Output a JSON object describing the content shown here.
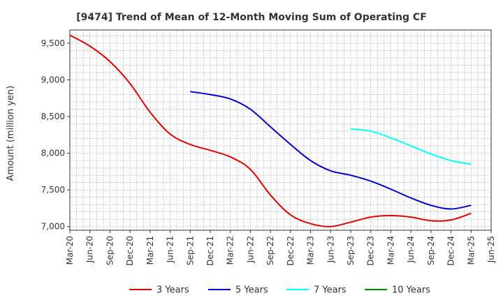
{
  "chart_data": {
    "type": "line",
    "title": "[9474]  Trend of Mean of 12-Month Moving Sum of Operating CF",
    "xlabel": "",
    "ylabel": "Amount (million yen)",
    "ylim": [
      6950,
      9680
    ],
    "yticks": [
      7000,
      7500,
      8000,
      8500,
      9000,
      9500
    ],
    "ytick_labels": [
      "7,000",
      "7,500",
      "8,000",
      "8,500",
      "9,000",
      "9,500"
    ],
    "xtick_labels": [
      "Mar-20",
      "Jun-20",
      "Sep-20",
      "Dec-20",
      "Mar-21",
      "Jun-21",
      "Sep-21",
      "Dec-21",
      "Mar-22",
      "Jun-22",
      "Sep-22",
      "Dec-22",
      "Mar-23",
      "Jun-23",
      "Sep-23",
      "Dec-23",
      "Mar-24",
      "Jun-24",
      "Sep-24",
      "Dec-24",
      "Mar-25",
      "Jun-25"
    ],
    "grid": true,
    "legend_position": "bottom",
    "series": [
      {
        "name": "3 Years",
        "color": "#dd0000",
        "points": [
          [
            0,
            9610
          ],
          [
            1,
            9460
          ],
          [
            2,
            9250
          ],
          [
            3,
            8950
          ],
          [
            4,
            8560
          ],
          [
            5,
            8260
          ],
          [
            6,
            8120
          ],
          [
            7,
            8040
          ],
          [
            8,
            7950
          ],
          [
            9,
            7780
          ],
          [
            10,
            7430
          ],
          [
            11,
            7160
          ],
          [
            12,
            7040
          ],
          [
            13,
            7000
          ],
          [
            14,
            7060
          ],
          [
            15,
            7130
          ],
          [
            16,
            7150
          ],
          [
            17,
            7130
          ],
          [
            18,
            7080
          ],
          [
            19,
            7090
          ],
          [
            20,
            7180
          ]
        ]
      },
      {
        "name": "5 Years",
        "color": "#0000cc",
        "points": [
          [
            6,
            8840
          ],
          [
            7,
            8800
          ],
          [
            8,
            8740
          ],
          [
            9,
            8600
          ],
          [
            10,
            8360
          ],
          [
            11,
            8120
          ],
          [
            12,
            7900
          ],
          [
            13,
            7760
          ],
          [
            14,
            7700
          ],
          [
            15,
            7620
          ],
          [
            16,
            7510
          ],
          [
            17,
            7390
          ],
          [
            18,
            7290
          ],
          [
            19,
            7240
          ],
          [
            20,
            7290
          ]
        ]
      },
      {
        "name": "7 Years",
        "color": "#00ffff",
        "points": [
          [
            14,
            8330
          ],
          [
            15,
            8300
          ],
          [
            16,
            8210
          ],
          [
            17,
            8100
          ],
          [
            18,
            7990
          ],
          [
            19,
            7900
          ],
          [
            20,
            7850
          ]
        ]
      },
      {
        "name": "10 Years",
        "color": "#008000",
        "points": []
      }
    ]
  }
}
